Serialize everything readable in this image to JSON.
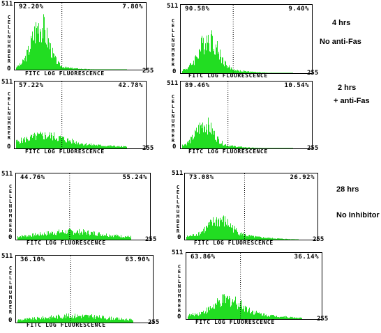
{
  "chart_data": [
    {
      "type": "histogram",
      "gate_left": "92.20%",
      "gate_right": "7.80%",
      "y_max": "511",
      "y_min": "0",
      "x_max": "255",
      "ylabel": "CELL NUMBER",
      "xlabel": "FITC LOG FLUORESCENCE",
      "gate_position": 0.36,
      "shape": {
        "peak": 0.18,
        "width": 0.09,
        "amp": 0.62,
        "tail": 0.05
      }
    },
    {
      "type": "histogram",
      "gate_left": "90.58%",
      "gate_right": "9.40%",
      "y_max": "511",
      "y_min": "0",
      "x_max": "255",
      "ylabel": "CELL NUMBER",
      "xlabel": "FITC LOG FLOURESCENCE",
      "gate_position": 0.4,
      "shape": {
        "peak": 0.2,
        "width": 0.1,
        "amp": 0.45,
        "tail": 0.06
      }
    },
    {
      "type": "histogram",
      "gate_left": "57.22%",
      "gate_right": "42.78%",
      "y_max": "511",
      "y_min": "0",
      "x_max": "255",
      "ylabel": "CELL NUMBER",
      "xlabel": "FITC LOG FLUORESCENCE",
      "gate_position": 0.36,
      "shape": {
        "peak": 0.22,
        "width": 0.2,
        "amp": 0.12,
        "tail": 0.07
      }
    },
    {
      "type": "histogram",
      "gate_left": "89.46%",
      "gate_right": "10.54%",
      "y_max": "511",
      "y_min": "0",
      "x_max": "255",
      "ylabel": "CELL NUMBER",
      "xlabel": "FITC LOG FLUORESCENCE",
      "gate_position": 0.36,
      "shape": {
        "peak": 0.17,
        "width": 0.09,
        "amp": 0.3,
        "tail": 0.06
      }
    },
    {
      "type": "histogram",
      "gate_left": "44.76%",
      "gate_right": "55.24%",
      "y_max": "511",
      "y_min": "0",
      "x_max": "255",
      "ylabel": "CELL NUMBER",
      "xlabel": "FITC LOG FLUORESCENCE",
      "gate_position": 0.4,
      "shape": {
        "peak": 0.4,
        "width": 0.28,
        "amp": 0.07,
        "tail": 0.05
      }
    },
    {
      "type": "histogram",
      "gate_left": "73.08%",
      "gate_right": "26.92%",
      "y_max": "511",
      "y_min": "0",
      "x_max": "255",
      "ylabel": "CELL NUMBER",
      "xlabel": "FITC LOG FLUORESCENCE",
      "gate_position": 0.45,
      "shape": {
        "peak": 0.25,
        "width": 0.12,
        "amp": 0.22,
        "tail": 0.07
      }
    },
    {
      "type": "histogram",
      "gate_left": "36.10%",
      "gate_right": "63.90%",
      "y_max": "511",
      "y_min": "0",
      "x_max": "255",
      "ylabel": "CELL NUMBER",
      "xlabel": "FITC LOG FLUORESCENCE",
      "gate_position": 0.4,
      "shape": {
        "peak": 0.42,
        "width": 0.3,
        "amp": 0.06,
        "tail": 0.04
      }
    },
    {
      "type": "histogram",
      "gate_left": "63.86%",
      "gate_right": "36.14%",
      "y_max": "511",
      "y_min": "0",
      "x_max": "255",
      "ylabel": "CELL NUMBER",
      "xlabel": "FITC LOG FLUORESCENCE",
      "gate_position": 0.4,
      "shape": {
        "peak": 0.3,
        "width": 0.14,
        "amp": 0.2,
        "tail": 0.09
      }
    }
  ],
  "conditions": {
    "c1_line1": "4 hrs",
    "c1_line2": "No anti-Fas",
    "c2_line1": "2 hrs",
    "c2_line2": "+ anti-Fas",
    "c3_line1": "28 hrs",
    "c3_line2": "No  Inhibitor"
  },
  "colors": {
    "histogram": "#22dd22",
    "axis": "#000000"
  }
}
